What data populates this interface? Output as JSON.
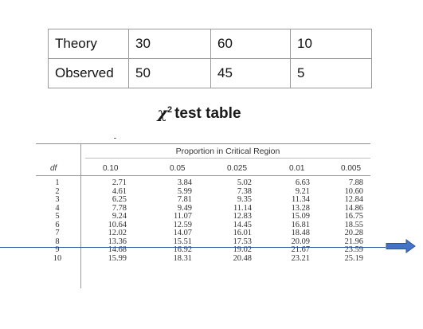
{
  "data_table": {
    "rows": [
      {
        "label": "Theory",
        "values": [
          "30",
          "60",
          "10"
        ]
      },
      {
        "label": "Observed",
        "values": [
          "50",
          "45",
          "5"
        ]
      }
    ]
  },
  "caption": {
    "symbol": "χ",
    "superscript": "2",
    "text": "test table"
  },
  "reference_table": {
    "region_title": "Proportion in Critical Region",
    "df_header": "df",
    "columns": [
      "0.10",
      "0.05",
      "0.025",
      "0.01",
      "0.005"
    ],
    "df": [
      "1",
      "2",
      "3",
      "4",
      "5",
      "6",
      "7",
      "8",
      "9",
      "10"
    ],
    "values": [
      [
        "2.71",
        "4.61",
        "6.25",
        "7.78",
        "9.24",
        "10.64",
        "12.02",
        "13.36",
        "14.68",
        "15.99"
      ],
      [
        "3.84",
        "5.99",
        "7.81",
        "9.49",
        "11.07",
        "12.59",
        "14.07",
        "15.51",
        "16.92",
        "18.31"
      ],
      [
        "5.02",
        "7.38",
        "9.35",
        "11.14",
        "12.83",
        "14.45",
        "16.01",
        "17.53",
        "19.02",
        "20.48"
      ],
      [
        "6.63",
        "9.21",
        "11.34",
        "13.28",
        "15.09",
        "16.81",
        "18.48",
        "20.09",
        "21.67",
        "23.21"
      ],
      [
        "7.88",
        "10.60",
        "12.84",
        "14.86",
        "16.75",
        "18.55",
        "20.28",
        "21.96",
        "23.59",
        "25.19"
      ]
    ]
  },
  "colors": {
    "annotation_line": "#2f5597",
    "arrow_fill": "#4472c4",
    "arrow_stroke": "#2f5597"
  },
  "icons": {
    "annotation_arrow": "right-arrow-icon"
  }
}
